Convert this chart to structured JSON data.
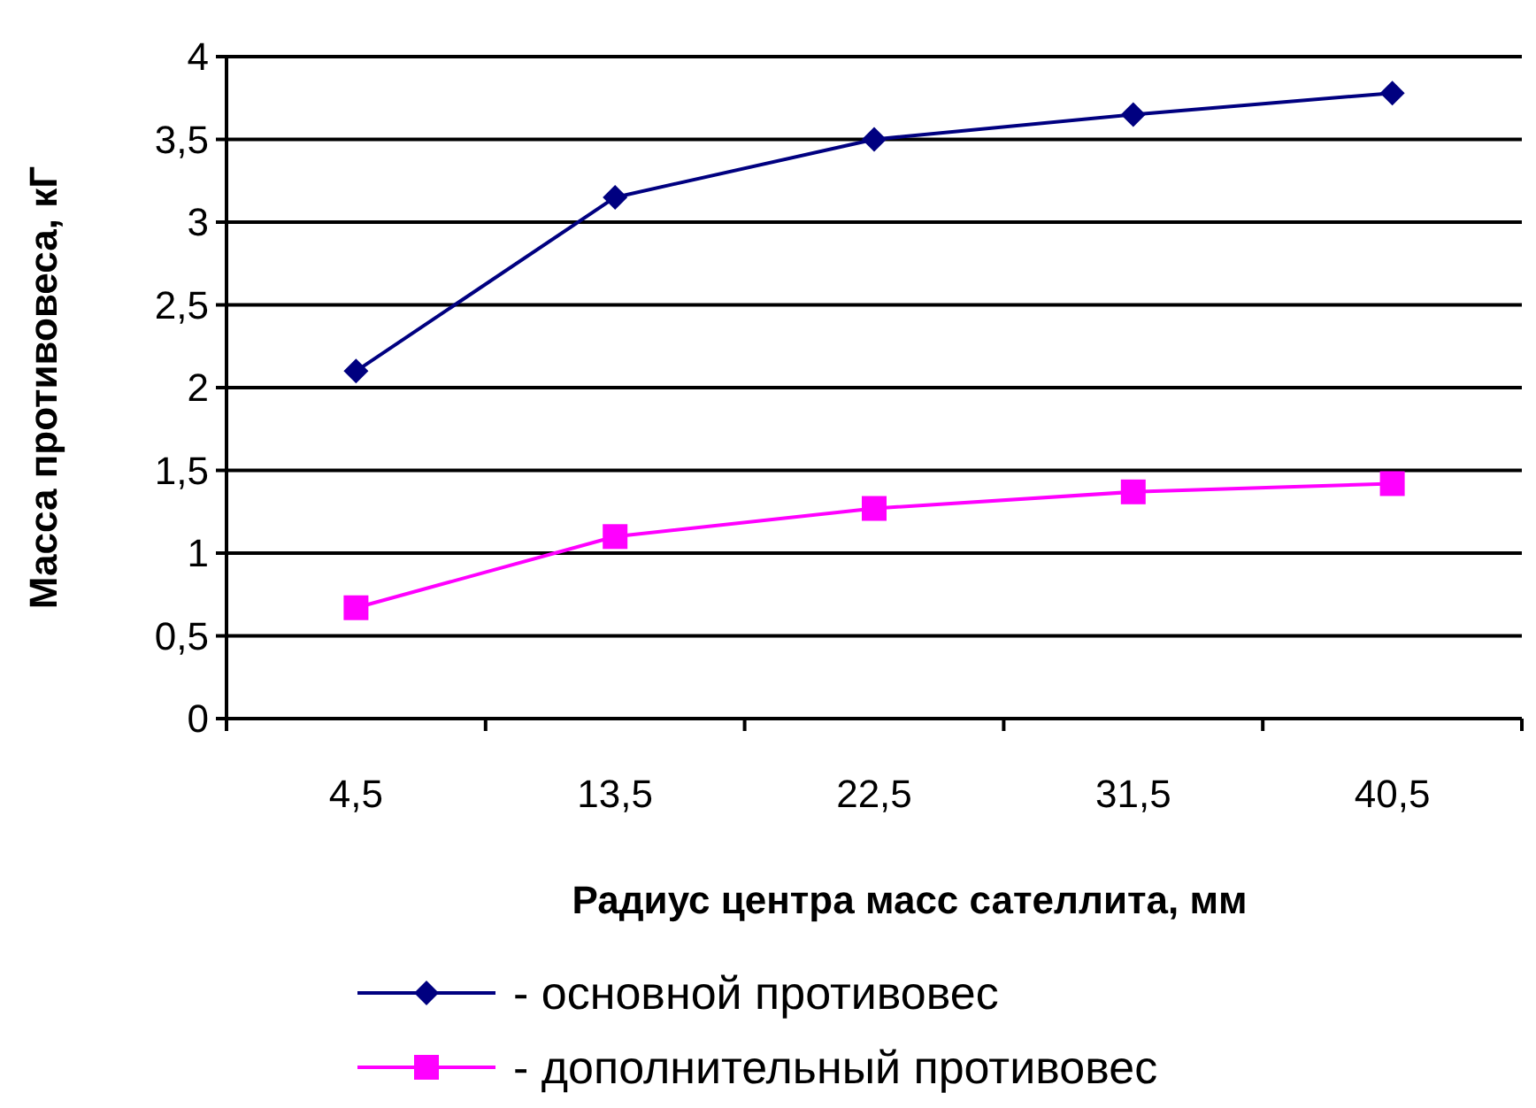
{
  "chart_data": {
    "type": "line",
    "xlabel": "Радиус центра масс сателлита, мм",
    "ylabel": "Масса противовеса, кГ",
    "categories": [
      "4,5",
      "13,5",
      "22,5",
      "31,5",
      "40,5"
    ],
    "series": [
      {
        "name": "- основной противовес",
        "color": "#000080",
        "marker": "diamond",
        "values": [
          2.1,
          3.15,
          3.5,
          3.65,
          3.78
        ]
      },
      {
        "name": "- дополнительный противовес",
        "color": "#ff00ff",
        "marker": "square",
        "values": [
          0.67,
          1.1,
          1.27,
          1.37,
          1.42
        ]
      }
    ],
    "ylim": [
      0,
      4
    ],
    "yticks": [
      {
        "value": 0,
        "label": "0"
      },
      {
        "value": 0.5,
        "label": "0,5"
      },
      {
        "value": 1,
        "label": "1"
      },
      {
        "value": 1.5,
        "label": "1,5"
      },
      {
        "value": 2,
        "label": "2"
      },
      {
        "value": 2.5,
        "label": "2,5"
      },
      {
        "value": 3,
        "label": "3"
      },
      {
        "value": 3.5,
        "label": "3,5"
      },
      {
        "value": 4,
        "label": "4"
      }
    ],
    "grid": "y",
    "legend": "bottom",
    "line_style": "solid"
  }
}
